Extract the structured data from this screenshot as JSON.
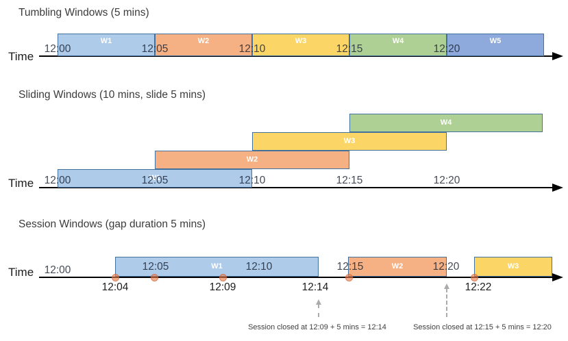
{
  "palette": {
    "window_border": "#41719C",
    "timeline": "#000000",
    "window_label_text": "#FFFFFF",
    "dashed_arrow": "#ABABAB",
    "event_dot": "#ED7D49",
    "fills": {
      "blue_light": "#AECBEA",
      "orange": "#F5B183",
      "yellow": "#FBD667",
      "green": "#AFD095",
      "blue_medium": "#8EA9DB"
    }
  },
  "sections": [
    {
      "title": "Tumbling Windows (5 mins)",
      "axis_label": "Time",
      "ticks": [
        "12:00",
        "12:05",
        "12:10",
        "12:15",
        "12:20"
      ],
      "windows": [
        {
          "label": "W1",
          "start": "12:00",
          "end": "12:05",
          "fill": "blue_light"
        },
        {
          "label": "W2",
          "start": "12:05",
          "end": "12:10",
          "fill": "orange"
        },
        {
          "label": "W3",
          "start": "12:10",
          "end": "12:15",
          "fill": "yellow"
        },
        {
          "label": "W4",
          "start": "12:15",
          "end": "12:20",
          "fill": "green"
        },
        {
          "label": "W5",
          "start": "12:20",
          "end": "12:25",
          "fill": "blue_medium"
        }
      ]
    },
    {
      "title": "Sliding Windows (10 mins, slide 5 mins)",
      "axis_label": "Time",
      "ticks": [
        "12:00",
        "12:05",
        "12:10",
        "12:15",
        "12:20"
      ],
      "windows": [
        {
          "label": "W1",
          "start": "12:00",
          "end": "12:10",
          "fill": "blue_light"
        },
        {
          "label": "W2",
          "start": "12:05",
          "end": "12:15",
          "fill": "orange"
        },
        {
          "label": "W3",
          "start": "12:10",
          "end": "12:20",
          "fill": "yellow"
        },
        {
          "label": "W4",
          "start": "12:15",
          "end": "12:25",
          "fill": "green"
        }
      ]
    },
    {
      "title": "Session Windows (gap duration 5 mins)",
      "axis_label": "Time",
      "ticks": [
        "12:00"
      ],
      "windows": [
        {
          "label": "W1",
          "start": "12:04",
          "end": "12:14",
          "fill": "blue_light"
        },
        {
          "label": "W2",
          "start": "12:15",
          "end": "12:20",
          "fill": "orange"
        },
        {
          "label": "W3",
          "start": "12:22",
          "fill": "yellow"
        }
      ],
      "inline_time_marks": [
        "12:05",
        "12:10",
        "12:15",
        "12:20"
      ],
      "event_labels": [
        "12:04",
        "12:09",
        "12:14",
        "12:22"
      ],
      "annotations": [
        "Session closed at 12:09 + 5 mins = 12:14",
        "Session closed at 12:15 + 5 mins = 12:20"
      ]
    }
  ]
}
